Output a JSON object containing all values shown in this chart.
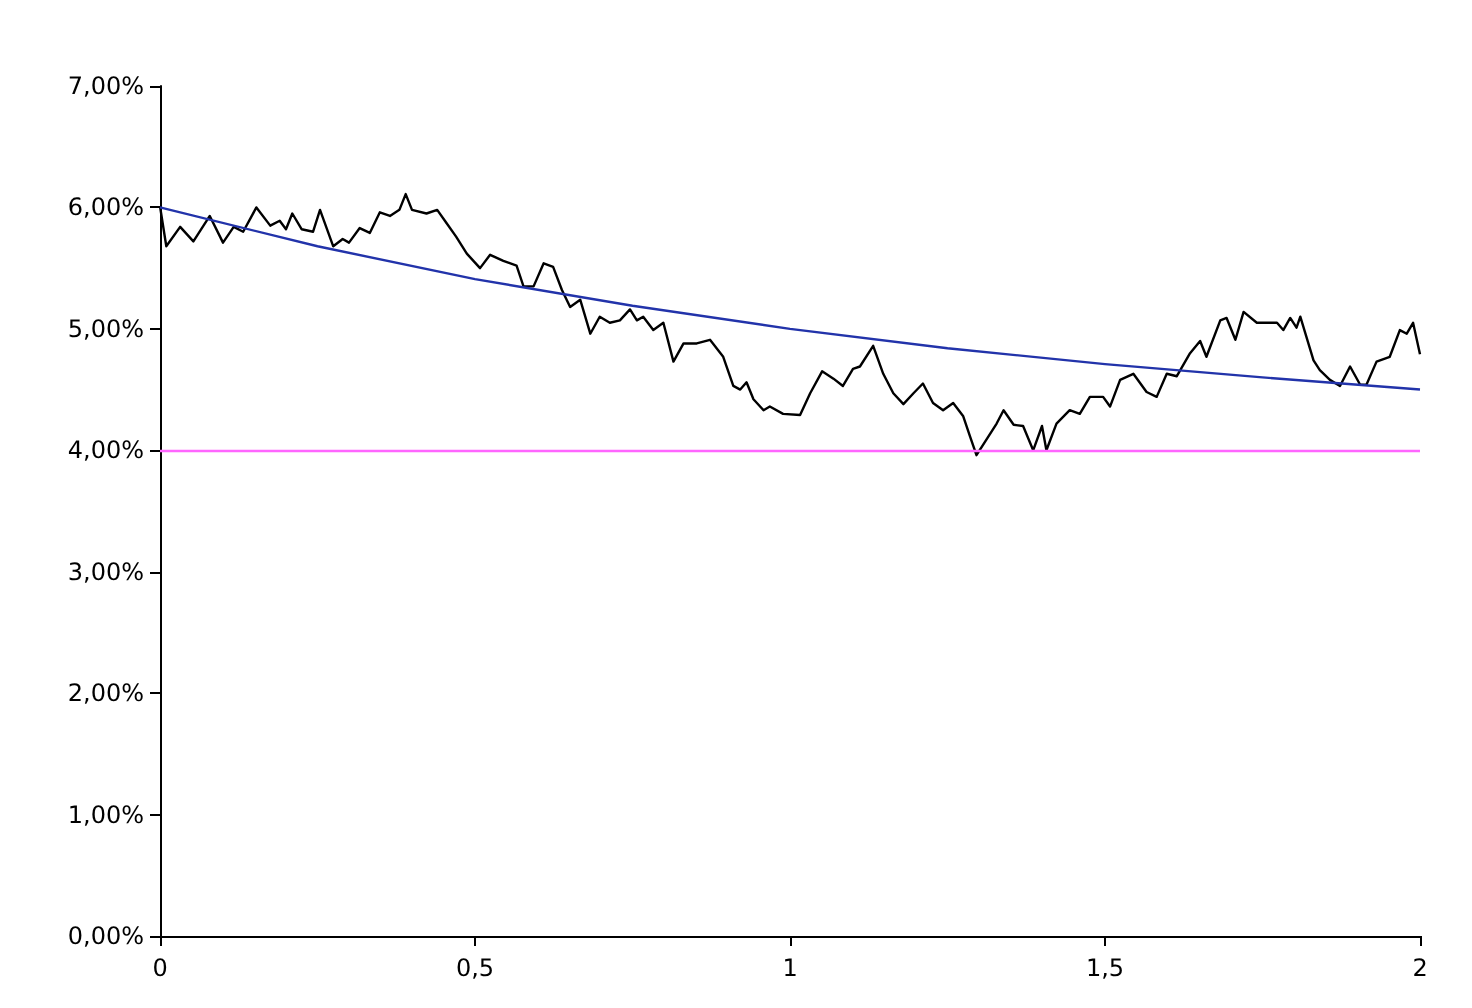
{
  "chart_data": {
    "type": "line",
    "xlim": [
      0,
      2
    ],
    "ylim": [
      0,
      7
    ],
    "xticks": [
      0,
      {
        "value": 0.5,
        "label": "0,5"
      },
      1,
      {
        "value": 1.5,
        "label": "1,5"
      },
      2
    ],
    "yticks": [
      {
        "value": 0,
        "label": "0,00%"
      },
      {
        "value": 1,
        "label": "1,00%"
      },
      {
        "value": 2,
        "label": "2,00%"
      },
      {
        "value": 3,
        "label": "3,00%"
      },
      {
        "value": 4,
        "label": "4,00%"
      },
      {
        "value": 5,
        "label": "5,00%"
      },
      {
        "value": 6,
        "label": "6,00%"
      },
      {
        "value": 7,
        "label": "7,00%"
      }
    ],
    "grid": false,
    "marker": "none",
    "line_style": "solid",
    "series": [
      {
        "color": "#000000",
        "x": [
          0,
          0.01,
          0.032,
          0.053,
          0.079,
          0.1,
          0.117,
          0.132,
          0.153,
          0.175,
          0.19,
          0.2,
          0.21,
          0.225,
          0.243,
          0.254,
          0.275,
          0.29,
          0.3,
          0.317,
          0.333,
          0.349,
          0.365,
          0.38,
          0.39,
          0.4,
          0.423,
          0.44,
          0.455,
          0.47,
          0.487,
          0.508,
          0.524,
          0.545,
          0.566,
          0.577,
          0.593,
          0.609,
          0.624,
          0.638,
          0.651,
          0.667,
          0.683,
          0.698,
          0.714,
          0.73,
          0.746,
          0.757,
          0.767,
          0.783,
          0.799,
          0.815,
          0.831,
          0.852,
          0.873,
          0.894,
          0.91,
          0.921,
          0.931,
          0.942,
          0.958,
          0.968,
          0.989,
          1.016,
          1.032,
          1.051,
          1.069,
          1.084,
          1.1,
          1.111,
          1.132,
          1.148,
          1.164,
          1.18,
          1.196,
          1.211,
          1.227,
          1.243,
          1.259,
          1.275,
          1.286,
          1.296,
          1.312,
          1.328,
          1.339,
          1.355,
          1.37,
          1.386,
          1.4,
          1.407,
          1.423,
          1.444,
          1.46,
          1.476,
          1.497,
          1.508,
          1.524,
          1.545,
          1.566,
          1.582,
          1.598,
          1.614,
          1.635,
          1.651,
          1.661,
          1.683,
          1.693,
          1.707,
          1.72,
          1.741,
          1.773,
          1.783,
          1.794,
          1.804,
          1.81,
          1.831,
          1.841,
          1.857,
          1.873,
          1.889,
          1.905,
          1.915,
          1.931,
          1.952,
          1.968,
          1.979,
          1.989,
          2.0
        ],
        "values": [
          6.01,
          5.68,
          5.84,
          5.72,
          5.93,
          5.71,
          5.84,
          5.8,
          6.0,
          5.85,
          5.89,
          5.82,
          5.95,
          5.82,
          5.8,
          5.98,
          5.68,
          5.74,
          5.71,
          5.83,
          5.79,
          5.96,
          5.93,
          5.98,
          6.11,
          5.98,
          5.95,
          5.98,
          5.87,
          5.76,
          5.62,
          5.5,
          5.61,
          5.56,
          5.52,
          5.35,
          5.35,
          5.54,
          5.51,
          5.32,
          5.18,
          5.24,
          4.96,
          5.1,
          5.05,
          5.07,
          5.16,
          5.07,
          5.1,
          4.99,
          5.05,
          4.73,
          4.88,
          4.88,
          4.91,
          4.77,
          4.53,
          4.5,
          4.56,
          4.42,
          4.33,
          4.36,
          4.3,
          4.29,
          4.47,
          4.65,
          4.59,
          4.53,
          4.67,
          4.69,
          4.86,
          4.63,
          4.47,
          4.38,
          4.47,
          4.55,
          4.39,
          4.33,
          4.39,
          4.28,
          4.11,
          3.96,
          4.09,
          4.22,
          4.33,
          4.21,
          4.2,
          4.0,
          4.2,
          4.0,
          4.22,
          4.33,
          4.3,
          4.44,
          4.44,
          4.36,
          4.58,
          4.63,
          4.48,
          4.44,
          4.63,
          4.61,
          4.8,
          4.9,
          4.77,
          5.07,
          5.09,
          4.91,
          5.14,
          5.05,
          5.05,
          4.99,
          5.09,
          5.01,
          5.1,
          4.74,
          4.66,
          4.58,
          4.53,
          4.69,
          4.54,
          4.54,
          4.73,
          4.77,
          4.99,
          4.96,
          5.05,
          4.79
        ]
      },
      {
        "color": "#2233aa",
        "x": [
          0,
          0.25,
          0.5,
          0.75,
          1,
          1.25,
          1.5,
          1.75,
          2
        ],
        "values": [
          6.0,
          5.68,
          5.41,
          5.19,
          5.0,
          4.84,
          4.71,
          4.6,
          4.5
        ]
      }
    ],
    "ref_lines": [
      {
        "axis": "y",
        "value": 4,
        "color": "#ff66ff",
        "line_style": "solid"
      }
    ]
  }
}
